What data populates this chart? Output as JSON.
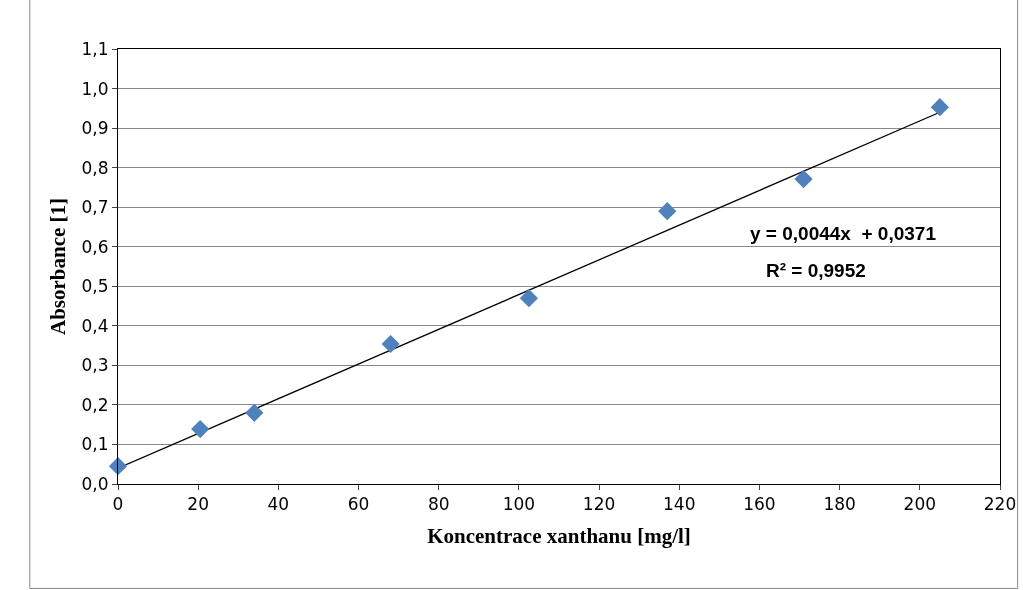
{
  "chart_data": {
    "type": "scatter",
    "xlabel": "Koncentrace xanthanu [mg/l]",
    "ylabel": "Absorbance [1]",
    "x": [
      0,
      20.5,
      34,
      68,
      102.5,
      137,
      171,
      205
    ],
    "series": [
      {
        "type": "scatter",
        "color": "#4f81bd",
        "marker": "diamond",
        "values": [
          0.045,
          0.139,
          0.18,
          0.354,
          0.47,
          0.69,
          0.771,
          0.953
        ]
      },
      {
        "type": "line",
        "color": "#000000",
        "line_style": "solid",
        "marker": "none",
        "x": [
          0,
          205
        ],
        "values": [
          0.04,
          0.94
        ]
      }
    ],
    "annotations": [
      "y = 0,0044x  + 0,0371",
      "R² = 0,9952"
    ],
    "xlim": [
      0,
      220
    ],
    "xticks": [
      0,
      20,
      40,
      60,
      80,
      100,
      120,
      140,
      160,
      180,
      200,
      220
    ],
    "ylim": [
      0,
      1.1
    ],
    "yticks": [
      {
        "value": 0,
        "label": "0,0"
      },
      {
        "value": 0.1,
        "label": "0,1"
      },
      {
        "value": 0.2,
        "label": "0,2"
      },
      {
        "value": 0.3,
        "label": "0,3"
      },
      {
        "value": 0.4,
        "label": "0,4"
      },
      {
        "value": 0.5,
        "label": "0,5"
      },
      {
        "value": 0.6,
        "label": "0,6"
      },
      {
        "value": 0.7,
        "label": "0,7"
      },
      {
        "value": 0.8,
        "label": "0,8"
      },
      {
        "value": 0.9,
        "label": "0,9"
      },
      {
        "value": 1,
        "label": "1,0"
      },
      {
        "value": 1.1,
        "label": "1,1"
      }
    ],
    "grid": "y"
  }
}
